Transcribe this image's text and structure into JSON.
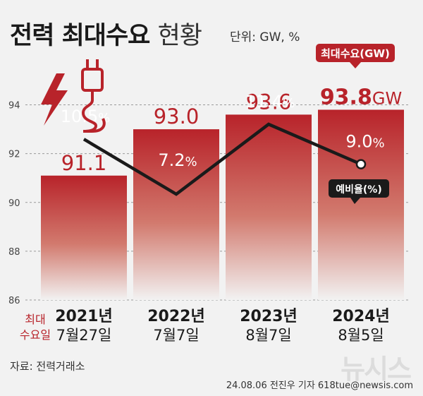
{
  "title_bold": "전력 최대수요",
  "title_light": "현황",
  "unit_label": "단위: GW, %",
  "legend_peak": "최대수요(GW)",
  "legend_reserve": "예비율(%)",
  "row_label_line1": "최대",
  "row_label_line2": "수요일",
  "source": "자료: 전력거래소",
  "credit": "24.08.06 전진우 기자 618tue@newsis.com",
  "watermark": "뉴시스",
  "colors": {
    "bar_top": "#b8232a",
    "bar_bottom": "#f2f2f2",
    "accent": "#b8232a",
    "line": "#1a1a1a"
  },
  "chart_data": {
    "type": "bar",
    "categories": [
      "2021년",
      "2022년",
      "2023년",
      "2024년"
    ],
    "dates": [
      "7월27일",
      "7월7일",
      "8월7일",
      "8월5일"
    ],
    "ylim": [
      86,
      95
    ],
    "yticks": [
      86,
      88,
      90,
      92,
      94
    ],
    "series": [
      {
        "name": "최대수요(GW)",
        "values": [
          91.1,
          93.0,
          93.6,
          93.8
        ],
        "labels": [
          "91.1",
          "93.0",
          "93.6",
          "93.8"
        ],
        "last_unit": "GW"
      },
      {
        "name": "예비율(%)",
        "type": "line",
        "values": [
          10.5,
          7.2,
          11.4,
          9.0
        ],
        "labels": [
          "10.5",
          "7.2",
          "11.4",
          "9.0"
        ],
        "unit": "%"
      }
    ]
  }
}
